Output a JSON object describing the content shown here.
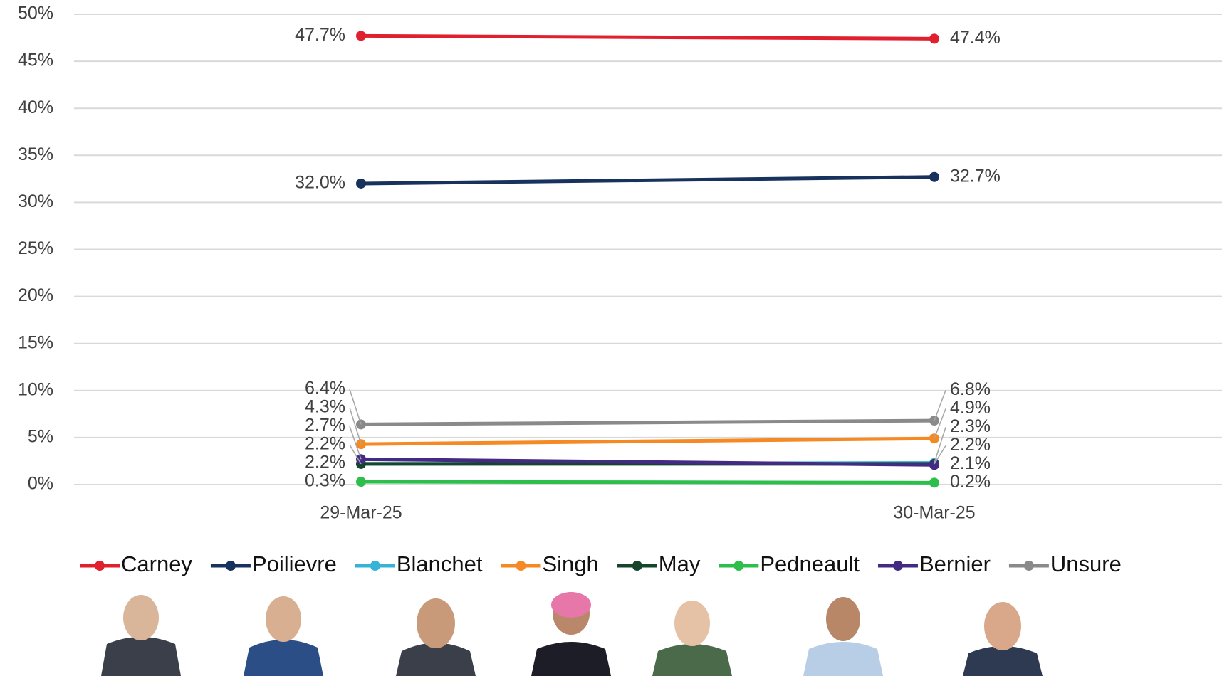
{
  "chart_data": {
    "type": "line",
    "x": [
      "29-Mar-25",
      "30-Mar-25"
    ],
    "ylim": [
      0,
      50
    ],
    "yticks": [
      {
        "value": 0,
        "label": "0%"
      },
      {
        "value": 5,
        "label": "5%"
      },
      {
        "value": 10,
        "label": "10%"
      },
      {
        "value": 15,
        "label": "15%"
      },
      {
        "value": 20,
        "label": "20%"
      },
      {
        "value": 25,
        "label": "25%"
      },
      {
        "value": 30,
        "label": "30%"
      },
      {
        "value": 35,
        "label": "35%"
      },
      {
        "value": 40,
        "label": "40%"
      },
      {
        "value": 45,
        "label": "45%"
      },
      {
        "value": 50,
        "label": "50%"
      }
    ],
    "grid": true,
    "legend": "bottom",
    "series": [
      {
        "name": "Carney",
        "color": "#e0202e",
        "values": [
          47.7,
          47.4
        ],
        "value_labels": [
          "47.7%",
          "47.4%"
        ]
      },
      {
        "name": "Poilievre",
        "color": "#17325c",
        "values": [
          32.0,
          32.7
        ],
        "value_labels": [
          "32.0%",
          "32.7%"
        ]
      },
      {
        "name": "Blanchet",
        "color": "#36b3d6",
        "values": [
          2.2,
          2.3
        ],
        "value_labels": [
          "2.2%",
          "2.3%"
        ]
      },
      {
        "name": "Singh",
        "color": "#f58a24",
        "values": [
          4.3,
          4.9
        ],
        "value_labels": [
          "4.3%",
          "4.9%"
        ]
      },
      {
        "name": "May",
        "color": "#15452b",
        "values": [
          2.2,
          2.2
        ],
        "value_labels": [
          "2.2%",
          "2.2%"
        ]
      },
      {
        "name": "Pedneault",
        "color": "#2dbe4c",
        "values": [
          0.3,
          0.2
        ],
        "value_labels": [
          "0.3%",
          "0.2%"
        ]
      },
      {
        "name": "Bernier",
        "color": "#432a82",
        "values": [
          2.7,
          2.1
        ],
        "value_labels": [
          "2.7%",
          "2.1%"
        ]
      },
      {
        "name": "Unsure",
        "color": "#8a8a8a",
        "values": [
          6.4,
          6.8
        ],
        "value_labels": [
          "6.4%",
          "6.8%"
        ]
      }
    ]
  }
}
